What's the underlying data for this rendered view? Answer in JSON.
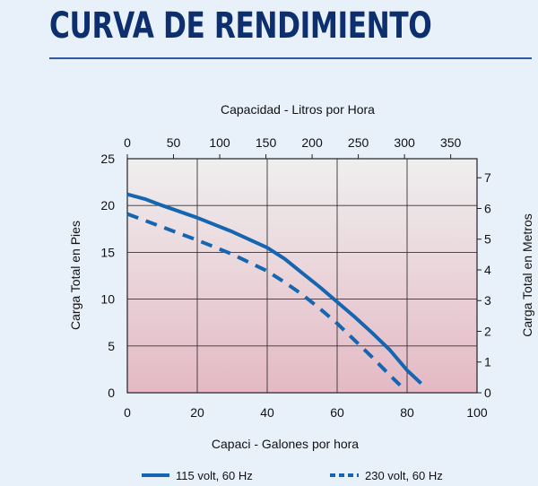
{
  "page_title": "CURVA DE RENDIMIENTO",
  "chart_data": {
    "type": "line",
    "title": "CURVA DE RENDIMIENTO",
    "xlabel": "Capaci - Galones por hora",
    "ylabel": "Carga Total en Pies",
    "x2label": "Capacidad - Litros por Hora",
    "y2label": "Carga Total en Metros",
    "xlim": [
      0,
      100
    ],
    "ylim": [
      0,
      25
    ],
    "x2lim": [
      0,
      378.5
    ],
    "y2lim": [
      0,
      7.62
    ],
    "xticks": [
      0,
      20,
      40,
      60,
      80,
      100
    ],
    "yticks": [
      0,
      5,
      10,
      15,
      20,
      25
    ],
    "x2ticks": [
      0,
      50,
      100,
      150,
      200,
      250,
      300,
      350
    ],
    "y2ticks": [
      0,
      1,
      2,
      3,
      4,
      5,
      6,
      7
    ],
    "grid": true,
    "legend_position": "bottom",
    "series": [
      {
        "name": "115 volt, 60 Hz",
        "style": "solid",
        "color": "#1565b0",
        "x": [
          0,
          5,
          10,
          20,
          30,
          40,
          45,
          50,
          55,
          60,
          65,
          70,
          75,
          80,
          84
        ],
        "y": [
          21.2,
          20.7,
          20.0,
          18.7,
          17.2,
          15.5,
          14.3,
          12.8,
          11.3,
          9.7,
          8.1,
          6.4,
          4.6,
          2.4,
          1.0
        ]
      },
      {
        "name": "230 volt, 60 Hz",
        "style": "dashed",
        "color": "#1565b0",
        "x": [
          0,
          5,
          10,
          20,
          30,
          40,
          45,
          50,
          55,
          60,
          65,
          70,
          75,
          78
        ],
        "y": [
          19.1,
          18.4,
          17.7,
          16.3,
          14.8,
          13.0,
          11.8,
          10.5,
          9.0,
          7.4,
          5.6,
          3.8,
          1.9,
          0.8
        ]
      }
    ]
  }
}
